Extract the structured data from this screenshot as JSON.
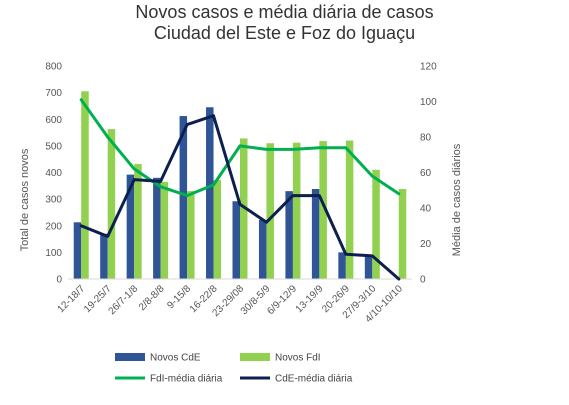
{
  "chart_data": {
    "type": "bar+line",
    "title_line1": "Novos casos e média diária de casos",
    "title_line2": "Ciudad del Este e Foz do Iguaçu",
    "ylabel_left": "Total de casos novos",
    "ylabel_right": "Média de casos diários",
    "ylim_left": [
      0,
      800
    ],
    "ylim_right": [
      0,
      120
    ],
    "yticks_left": [
      0,
      100,
      200,
      300,
      400,
      500,
      600,
      700,
      800
    ],
    "yticks_right": [
      0,
      20,
      40,
      60,
      80,
      100,
      120
    ],
    "categories": [
      "12-18/7",
      "19-25/7",
      "26/7-1/8",
      "2/8-8/8",
      "9-15/8",
      "16-22/8",
      "23-29/08",
      "30/8-5/9",
      "6/9-12/9",
      "13-19/9",
      "20-26/9",
      "27/9-3/10",
      "4/10-10/10"
    ],
    "bar_series": [
      {
        "name": "Novos CdE",
        "color": "#2f5597",
        "values": [
          213,
          170,
          392,
          380,
          612,
          645,
          292,
          222,
          330,
          338,
          100,
          90,
          0
        ]
      },
      {
        "name": "Novos FdI",
        "color": "#92d050",
        "values": [
          705,
          563,
          432,
          365,
          330,
          372,
          528,
          510,
          512,
          518,
          520,
          410,
          338
        ]
      }
    ],
    "line_series": [
      {
        "name": "FdI-média diária",
        "color": "#00b050",
        "axis": "right",
        "values": [
          101,
          80,
          62,
          52,
          47,
          53,
          75,
          73,
          73,
          74,
          74,
          58,
          48
        ]
      },
      {
        "name": "CdE-média diária",
        "color": "#0d1f4f",
        "axis": "right",
        "values": [
          30,
          24,
          56,
          55,
          87,
          92,
          42,
          32,
          47,
          47,
          14,
          13,
          0
        ]
      }
    ],
    "legend_position": "bottom",
    "grid": false
  }
}
